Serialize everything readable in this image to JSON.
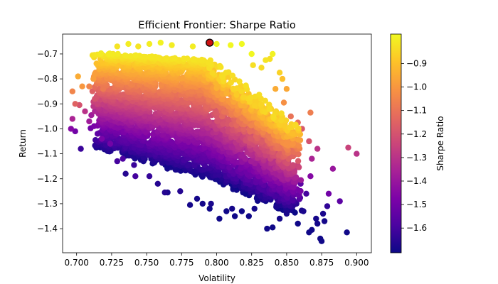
{
  "chart_data": {
    "type": "scatter",
    "title": "Efficient Frontier: Sharpe Ratio",
    "xlabel": "Volatility",
    "ylabel": "Return",
    "xlim": [
      0.69,
      0.9105
    ],
    "ylim": [
      -1.4965,
      -0.6205
    ],
    "xticks": [
      0.7,
      0.725,
      0.75,
      0.775,
      0.8,
      0.825,
      0.85,
      0.875,
      0.9
    ],
    "xtick_labels": [
      "0.700",
      "0.725",
      "0.750",
      "0.775",
      "0.800",
      "0.825",
      "0.850",
      "0.875",
      "0.900"
    ],
    "yticks": [
      -0.7,
      -0.8,
      -0.9,
      -1.0,
      -1.1,
      -1.2,
      -1.3,
      -1.4
    ],
    "ytick_labels": [
      "−0.7",
      "−0.8",
      "−0.9",
      "−1.0",
      "−1.1",
      "−1.2",
      "−1.3",
      "−1.4"
    ],
    "colormap": "plasma",
    "colorbar": {
      "label": "Sharpe Ratio",
      "range": [
        -1.705,
        -0.775
      ],
      "ticks": [
        -0.9,
        -1.0,
        -1.1,
        -1.2,
        -1.3,
        -1.4,
        -1.5,
        -1.6
      ],
      "tick_labels": [
        "−0.9",
        "−1.0",
        "−1.1",
        "−1.2",
        "−1.3",
        "−1.4",
        "−1.5",
        "−1.6"
      ]
    },
    "grid": false,
    "points": [
      [
        0.697,
        -0.85,
        -1.05
      ],
      [
        0.701,
        -0.79,
        -0.95
      ],
      [
        0.699,
        -0.9,
        -1.15
      ],
      [
        0.702,
        -0.905,
        -1.2
      ],
      [
        0.697,
        -0.96,
        -1.35
      ],
      [
        0.696,
        -1.0,
        -1.45
      ],
      [
        0.699,
        -1.01,
        -1.5
      ],
      [
        0.703,
        -1.08,
        -1.62
      ],
      [
        0.706,
        -0.93,
        -1.3
      ],
      [
        0.709,
        -0.83,
        -1.05
      ],
      [
        0.712,
        -0.8,
        -0.98
      ],
      [
        0.715,
        -0.9,
        -1.25
      ],
      [
        0.717,
        -0.72,
        -0.88
      ],
      [
        0.722,
        -0.76,
        -0.95
      ],
      [
        0.726,
        -0.7,
        -0.85
      ],
      [
        0.729,
        -0.67,
        -0.82
      ],
      [
        0.737,
        -0.66,
        -0.8
      ],
      [
        0.724,
        -1.06,
        -1.5
      ],
      [
        0.729,
        -1.13,
        -1.6
      ],
      [
        0.735,
        -1.18,
        -1.66
      ],
      [
        0.741,
        -1.145,
        -1.62
      ],
      [
        0.752,
        -1.19,
        -1.63
      ],
      [
        0.758,
        -1.22,
        -1.66
      ],
      [
        0.765,
        -1.255,
        -1.68
      ],
      [
        0.774,
        -1.25,
        -1.66
      ],
      [
        0.786,
        -1.28,
        -1.69
      ],
      [
        0.79,
        -1.3,
        -1.69
      ],
      [
        0.796,
        -1.3,
        -1.68
      ],
      [
        0.802,
        -1.36,
        -1.7
      ],
      [
        0.807,
        -1.33,
        -1.7
      ],
      [
        0.811,
        -1.32,
        -1.69
      ],
      [
        0.818,
        -1.33,
        -1.7
      ],
      [
        0.823,
        -1.35,
        -1.7
      ],
      [
        0.827,
        -1.32,
        -1.69
      ],
      [
        0.836,
        -1.4,
        -1.7
      ],
      [
        0.84,
        -1.395,
        -1.7
      ],
      [
        0.845,
        -1.36,
        -1.69
      ],
      [
        0.85,
        -1.34,
        -1.68
      ],
      [
        0.857,
        -1.3,
        -1.65
      ],
      [
        0.866,
        -1.415,
        -1.7
      ],
      [
        0.868,
        -1.405,
        -1.7
      ],
      [
        0.872,
        -1.38,
        -1.69
      ],
      [
        0.874,
        -1.44,
        -1.7
      ],
      [
        0.875,
        -1.45,
        -1.7
      ],
      [
        0.877,
        -1.37,
        -1.69
      ],
      [
        0.879,
        -1.31,
        -1.64
      ],
      [
        0.876,
        -1.34,
        -1.68
      ],
      [
        0.871,
        -1.36,
        -1.69
      ],
      [
        0.862,
        -1.33,
        -1.68
      ],
      [
        0.88,
        -1.26,
        -1.5
      ],
      [
        0.883,
        -1.16,
        -1.4
      ],
      [
        0.888,
        -1.29,
        -1.55
      ],
      [
        0.893,
        -1.415,
        -1.7
      ],
      [
        0.894,
        -1.075,
        -1.25
      ],
      [
        0.9,
        -1.1,
        -1.3
      ],
      [
        0.872,
        -1.08,
        -1.3
      ],
      [
        0.868,
        -1.12,
        -1.35
      ],
      [
        0.867,
        -1.19,
        -1.45
      ],
      [
        0.866,
        -1.05,
        -1.2
      ],
      [
        0.861,
        -1.0,
        -1.18
      ],
      [
        0.867,
        -0.935,
        -1.07
      ],
      [
        0.858,
        -0.975,
        -1.12
      ],
      [
        0.85,
        -0.84,
        -0.96
      ],
      [
        0.847,
        -0.8,
        -0.9
      ],
      [
        0.845,
        -0.775,
        -0.86
      ],
      [
        0.838,
        -0.72,
        -0.83
      ],
      [
        0.84,
        -0.7,
        -0.79
      ],
      [
        0.835,
        -0.725,
        -0.82
      ],
      [
        0.825,
        -0.7,
        -0.78
      ],
      [
        0.818,
        -0.66,
        -0.77
      ],
      [
        0.81,
        -0.665,
        -0.78
      ],
      [
        0.8,
        -0.66,
        -0.78
      ],
      [
        0.783,
        -0.67,
        -0.8
      ],
      [
        0.768,
        -0.665,
        -0.8
      ],
      [
        0.76,
        -0.655,
        -0.79
      ],
      [
        0.752,
        -0.66,
        -0.8
      ],
      [
        0.744,
        -0.67,
        -0.82
      ],
      [
        0.795,
        -0.655,
        -0.78
      ],
      [
        0.826,
        -0.745,
        -0.83
      ],
      [
        0.832,
        -0.755,
        -0.84
      ],
      [
        0.842,
        -0.84,
        -0.95
      ],
      [
        0.848,
        -0.895,
        -1.02
      ],
      [
        0.853,
        -0.95,
        -1.1
      ],
      [
        0.856,
        -1.04,
        -1.22
      ],
      [
        0.853,
        -1.08,
        -1.3
      ],
      [
        0.851,
        -1.13,
        -1.4
      ],
      [
        0.852,
        -1.22,
        -1.55
      ],
      [
        0.855,
        -1.26,
        -1.6
      ],
      [
        0.844,
        -1.29,
        -1.64
      ],
      [
        0.86,
        -1.22,
        -1.55
      ],
      [
        0.864,
        -1.26,
        -1.6
      ],
      [
        0.813,
        -1.35,
        -1.7
      ],
      [
        0.858,
        -1.38,
        -1.7
      ],
      [
        0.795,
        -1.32,
        -1.7
      ],
      [
        0.781,
        -1.305,
        -1.69
      ],
      [
        0.763,
        -1.255,
        -1.66
      ],
      [
        0.742,
        -1.19,
        -1.6
      ],
      [
        0.733,
        -1.12,
        -1.58
      ],
      [
        0.718,
        -1.04,
        -1.48
      ],
      [
        0.709,
        -0.97,
        -1.38
      ],
      [
        0.713,
        -0.88,
        -1.2
      ],
      [
        0.713,
        -0.78,
        -0.98
      ],
      [
        0.719,
        -0.84,
        -1.08
      ],
      [
        0.704,
        -0.83,
        -1.0
      ]
    ]
  }
}
